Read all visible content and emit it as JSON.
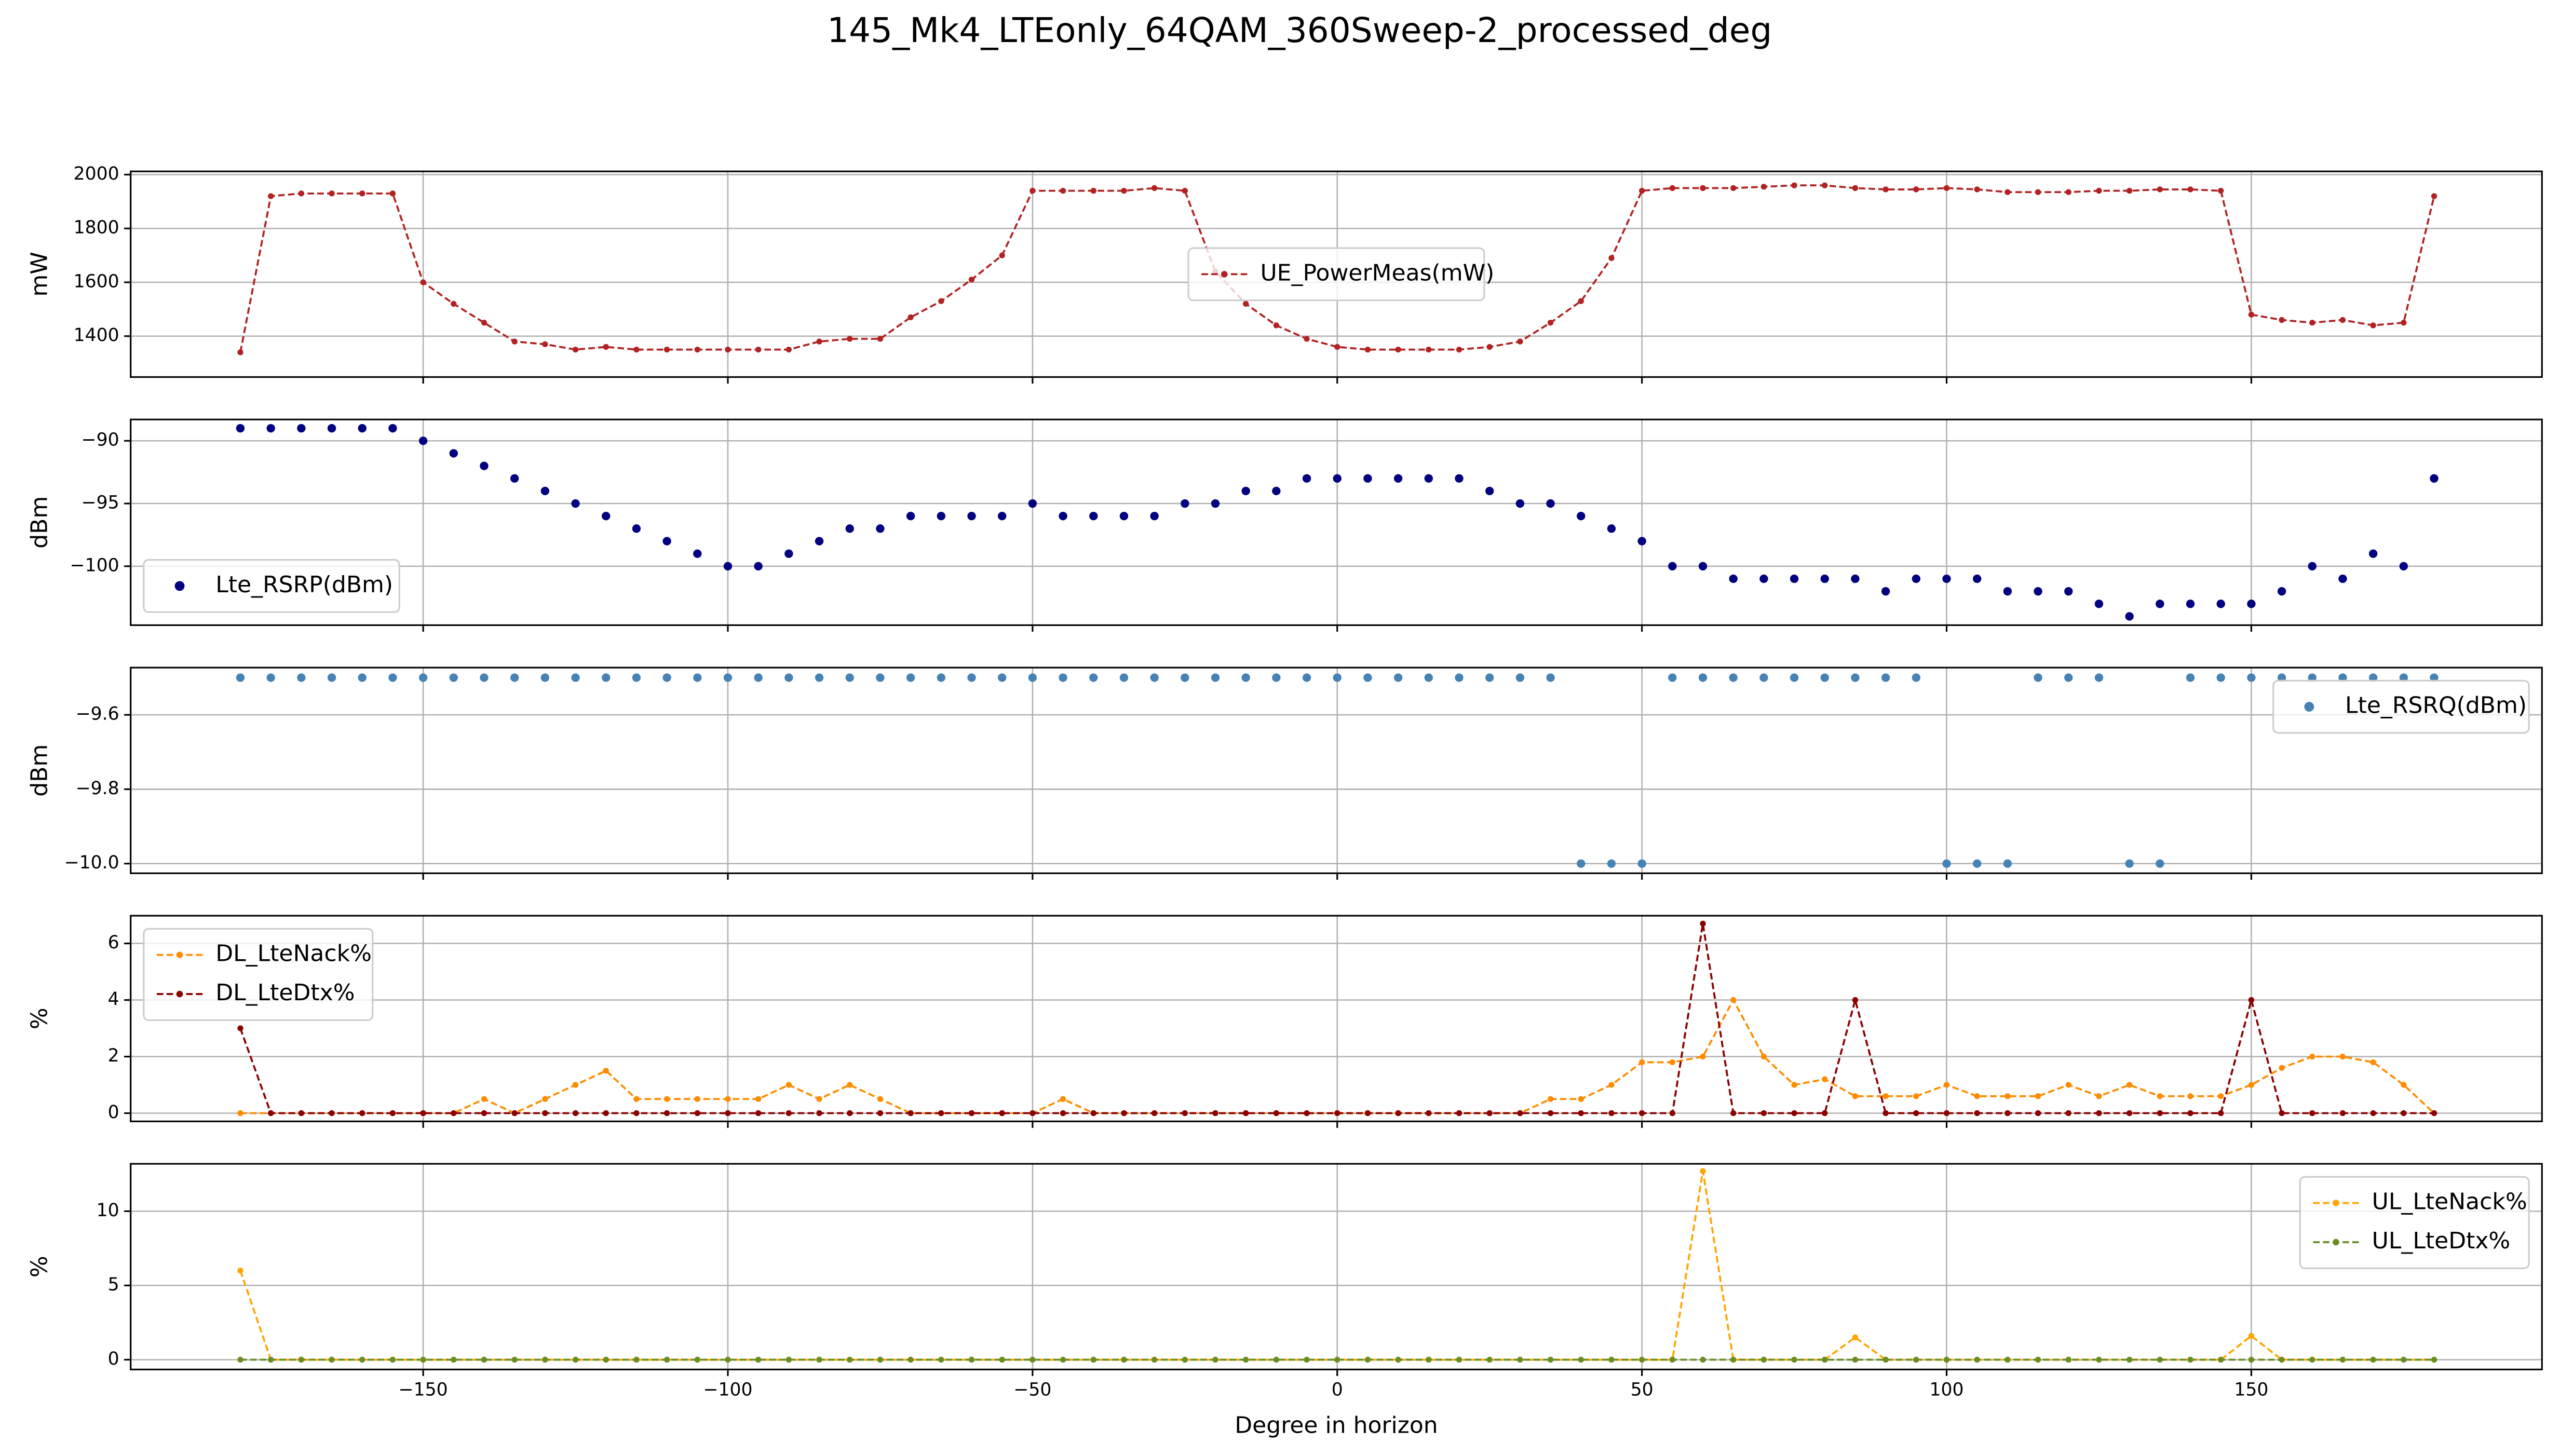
{
  "title": "145_Mk4_LTEonly_64QAM_360Sweep-2_processed_deg",
  "chart_data": [
    {
      "type": "line",
      "ylabel": "mW",
      "legend": "center",
      "grid": true,
      "xlim": [
        -198,
        197.7
      ],
      "xticks": [
        {
          "value": -150,
          "label": "−150"
        },
        {
          "value": -100,
          "label": "−100"
        },
        {
          "value": -50,
          "label": "−50"
        },
        0,
        50,
        100,
        150
      ],
      "ylim": [
        1248,
        2012
      ],
      "yticks": [
        1400,
        1600,
        1800,
        2000
      ],
      "x": [
        -180,
        -175,
        -170,
        -165,
        -160,
        -155,
        -150,
        -145,
        -140,
        -135,
        -130,
        -125,
        -120,
        -115,
        -110,
        -105,
        -100,
        -95,
        -90,
        -85,
        -80,
        -75,
        -70,
        -65,
        -60,
        -55,
        -50,
        -45,
        -40,
        -35,
        -30,
        -25,
        -20,
        -15,
        -10,
        -5,
        0,
        5,
        10,
        15,
        20,
        25,
        30,
        35,
        40,
        45,
        50,
        55,
        60,
        65,
        70,
        75,
        80,
        85,
        90,
        95,
        100,
        105,
        110,
        115,
        120,
        125,
        130,
        135,
        140,
        145,
        150,
        155,
        160,
        165,
        170,
        175,
        180
      ],
      "series": [
        {
          "name": "UE_PowerMeas(mW)",
          "color": "#b22222",
          "values": [
            1340,
            1920,
            1930,
            1930,
            1930,
            1930,
            1600,
            1520,
            1450,
            1380,
            1370,
            1350,
            1360,
            1350,
            1350,
            1350,
            1350,
            1350,
            1350,
            1380,
            1390,
            1390,
            1470,
            1530,
            1610,
            1700,
            1940,
            1940,
            1940,
            1940,
            1950,
            1940,
            1640,
            1520,
            1440,
            1390,
            1360,
            1350,
            1350,
            1350,
            1350,
            1360,
            1380,
            1450,
            1530,
            1690,
            1940,
            1950,
            1950,
            1950,
            1955,
            1960,
            1960,
            1950,
            1945,
            1945,
            1950,
            1945,
            1935,
            1935,
            1935,
            1940,
            1940,
            1945,
            1945,
            1940,
            1480,
            1460,
            1450,
            1460,
            1440,
            1450,
            1920
          ]
        }
      ]
    },
    {
      "type": "scatter",
      "ylabel": "dBm",
      "legend": "lower left",
      "grid": true,
      "xlim": [
        -198,
        197.7
      ],
      "xticks": [
        {
          "value": -150,
          "label": "−150"
        },
        {
          "value": -100,
          "label": "−100"
        },
        {
          "value": -50,
          "label": "−50"
        },
        0,
        50,
        100,
        150
      ],
      "ylim": [
        -104.7,
        -88.3
      ],
      "yticks": [
        {
          "value": -90,
          "label": "−90"
        },
        {
          "value": -95,
          "label": "−95"
        },
        {
          "value": -100,
          "label": "−100"
        }
      ],
      "x": [
        -180,
        -175,
        -170,
        -165,
        -160,
        -155,
        -150,
        -145,
        -140,
        -135,
        -130,
        -125,
        -120,
        -115,
        -110,
        -105,
        -100,
        -95,
        -90,
        -85,
        -80,
        -75,
        -70,
        -65,
        -60,
        -55,
        -50,
        -45,
        -40,
        -35,
        -30,
        -25,
        -20,
        -15,
        -10,
        -5,
        0,
        5,
        10,
        15,
        20,
        25,
        30,
        35,
        40,
        45,
        50,
        55,
        60,
        65,
        70,
        75,
        80,
        85,
        90,
        95,
        100,
        105,
        110,
        115,
        120,
        125,
        130,
        135,
        140,
        145,
        150,
        155,
        160,
        165,
        170,
        175,
        180
      ],
      "series": [
        {
          "name": "Lte_RSRP(dBm)",
          "color": "#000080",
          "values": [
            -89,
            -89,
            -89,
            -89,
            -89,
            -89,
            -90,
            -91,
            -92,
            -93,
            -94,
            -95,
            -96,
            -97,
            -98,
            -99,
            -100,
            -100,
            -99,
            -98,
            -97,
            -97,
            -96,
            -96,
            -96,
            -96,
            -95,
            -96,
            -96,
            -96,
            -96,
            -95,
            -95,
            -94,
            -94,
            -93,
            -93,
            -93,
            -93,
            -93,
            -93,
            -94,
            -95,
            -95,
            -96,
            -97,
            -98,
            -100,
            -100,
            -101,
            -101,
            -101,
            -101,
            -101,
            -102,
            -101,
            -101,
            -101,
            -102,
            -102,
            -102,
            -103,
            -104,
            -103,
            -103,
            -103,
            -103,
            -102,
            -100,
            -101,
            -99,
            -100,
            -93
          ]
        }
      ]
    },
    {
      "type": "scatter",
      "ylabel": "dBm",
      "legend": "upper right",
      "grid": true,
      "xlim": [
        -198,
        197.7
      ],
      "xticks": [
        {
          "value": -150,
          "label": "−150"
        },
        {
          "value": -100,
          "label": "−100"
        },
        {
          "value": -50,
          "label": "−50"
        },
        0,
        50,
        100,
        150
      ],
      "ylim": [
        -10.026,
        -9.473
      ],
      "yticks": [
        {
          "value": -9.6,
          "label": "−9.6"
        },
        {
          "value": -9.8,
          "label": "−9.8"
        },
        {
          "value": -10,
          "label": "−10.0"
        }
      ],
      "x": [
        -180,
        -175,
        -170,
        -165,
        -160,
        -155,
        -150,
        -145,
        -140,
        -135,
        -130,
        -125,
        -120,
        -115,
        -110,
        -105,
        -100,
        -95,
        -90,
        -85,
        -80,
        -75,
        -70,
        -65,
        -60,
        -55,
        -50,
        -45,
        -40,
        -35,
        -30,
        -25,
        -20,
        -15,
        -10,
        -5,
        0,
        5,
        10,
        15,
        20,
        25,
        30,
        35,
        40,
        45,
        50,
        55,
        60,
        65,
        70,
        75,
        80,
        85,
        90,
        95,
        100,
        105,
        110,
        115,
        120,
        125,
        130,
        135,
        140,
        145,
        150,
        155,
        160,
        165,
        170,
        175,
        180
      ],
      "series": [
        {
          "name": "Lte_RSRQ(dBm)",
          "color": "#4682b4",
          "values": [
            -9.5,
            -9.5,
            -9.5,
            -9.5,
            -9.5,
            -9.5,
            -9.5,
            -9.5,
            -9.5,
            -9.5,
            -9.5,
            -9.5,
            -9.5,
            -9.5,
            -9.5,
            -9.5,
            -9.5,
            -9.5,
            -9.5,
            -9.5,
            -9.5,
            -9.5,
            -9.5,
            -9.5,
            -9.5,
            -9.5,
            -9.5,
            -9.5,
            -9.5,
            -9.5,
            -9.5,
            -9.5,
            -9.5,
            -9.5,
            -9.5,
            -9.5,
            -9.5,
            -9.5,
            -9.5,
            -9.5,
            -9.5,
            -9.5,
            -9.5,
            -9.5,
            -10,
            -10,
            -10,
            -9.5,
            -9.5,
            -9.5,
            -9.5,
            -9.5,
            -9.5,
            -9.5,
            -9.5,
            -9.5,
            -10,
            -10,
            -10,
            -9.5,
            -9.5,
            -9.5,
            -10,
            -10,
            -9.5,
            -9.5,
            -9.5,
            -9.5,
            -9.5,
            -9.5,
            -9.5,
            -9.5,
            -9.5
          ]
        }
      ]
    },
    {
      "type": "line",
      "ylabel": "%",
      "legend": "upper left",
      "grid": true,
      "xlim": [
        -198,
        197.7
      ],
      "xticks": [
        {
          "value": -150,
          "label": "−150"
        },
        {
          "value": -100,
          "label": "−100"
        },
        {
          "value": -50,
          "label": "−50"
        },
        0,
        50,
        100,
        150
      ],
      "ylim": [
        -0.29,
        6.98
      ],
      "yticks": [
        0,
        2,
        4,
        6
      ],
      "x": [
        -180,
        -175,
        -170,
        -165,
        -160,
        -155,
        -150,
        -145,
        -140,
        -135,
        -130,
        -125,
        -120,
        -115,
        -110,
        -105,
        -100,
        -95,
        -90,
        -85,
        -80,
        -75,
        -70,
        -65,
        -60,
        -55,
        -50,
        -45,
        -40,
        -35,
        -30,
        -25,
        -20,
        -15,
        -10,
        -5,
        0,
        5,
        10,
        15,
        20,
        25,
        30,
        35,
        40,
        45,
        50,
        55,
        60,
        65,
        70,
        75,
        80,
        85,
        90,
        95,
        100,
        105,
        110,
        115,
        120,
        125,
        130,
        135,
        140,
        145,
        150,
        155,
        160,
        165,
        170,
        175,
        180
      ],
      "series": [
        {
          "name": "DL_LteNack%",
          "color": "#ff8c00",
          "values": [
            0,
            0,
            0,
            0,
            0,
            0,
            0,
            0,
            0.5,
            0,
            0.5,
            1,
            1.5,
            0.5,
            0.5,
            0.5,
            0.5,
            0.5,
            1,
            0.5,
            1,
            0.5,
            0,
            0,
            0,
            0,
            0,
            0.5,
            0,
            0,
            0,
            0,
            0,
            0,
            0,
            0,
            0,
            0,
            0,
            0,
            0,
            0,
            0,
            0.5,
            0.5,
            1,
            1.8,
            1.8,
            2,
            4,
            2,
            1,
            1.2,
            0.6,
            0.6,
            0.6,
            1,
            0.6,
            0.6,
            0.6,
            1,
            0.6,
            1,
            0.6,
            0.6,
            0.6,
            1,
            1.6,
            2,
            2,
            1.8,
            1,
            0
          ]
        },
        {
          "name": "DL_LteDtx%",
          "color": "#8b0000",
          "values": [
            3,
            0,
            0,
            0,
            0,
            0,
            0,
            0,
            0,
            0,
            0,
            0,
            0,
            0,
            0,
            0,
            0,
            0,
            0,
            0,
            0,
            0,
            0,
            0,
            0,
            0,
            0,
            0,
            0,
            0,
            0,
            0,
            0,
            0,
            0,
            0,
            0,
            0,
            0,
            0,
            0,
            0,
            0,
            0,
            0,
            0,
            0,
            0,
            6.7,
            0,
            0,
            0,
            0,
            4,
            0,
            0,
            0,
            0,
            0,
            0,
            0,
            0,
            0,
            0,
            0,
            0,
            4,
            0,
            0,
            0,
            0,
            0,
            0
          ]
        }
      ]
    },
    {
      "type": "line",
      "ylabel": "%",
      "xlabel": "Degree in horizon",
      "legend": "upper right",
      "grid": true,
      "xlim": [
        -198,
        197.7
      ],
      "xticks": [
        {
          "value": -150,
          "label": "−150"
        },
        {
          "value": -100,
          "label": "−100"
        },
        {
          "value": -50,
          "label": "−50"
        },
        0,
        50,
        100,
        150
      ],
      "ylim": [
        -0.66,
        13.19
      ],
      "yticks": [
        0,
        5,
        10
      ],
      "x": [
        -180,
        -175,
        -170,
        -165,
        -160,
        -155,
        -150,
        -145,
        -140,
        -135,
        -130,
        -125,
        -120,
        -115,
        -110,
        -105,
        -100,
        -95,
        -90,
        -85,
        -80,
        -75,
        -70,
        -65,
        -60,
        -55,
        -50,
        -45,
        -40,
        -35,
        -30,
        -25,
        -20,
        -15,
        -10,
        -5,
        0,
        5,
        10,
        15,
        20,
        25,
        30,
        35,
        40,
        45,
        50,
        55,
        60,
        65,
        70,
        75,
        80,
        85,
        90,
        95,
        100,
        105,
        110,
        115,
        120,
        125,
        130,
        135,
        140,
        145,
        150,
        155,
        160,
        165,
        170,
        175,
        180
      ],
      "series": [
        {
          "name": "UL_LteNack%",
          "color": "#ffa500",
          "values": [
            6,
            0,
            0,
            0,
            0,
            0,
            0,
            0,
            0,
            0,
            0,
            0,
            0,
            0,
            0,
            0,
            0,
            0,
            0,
            0,
            0,
            0,
            0,
            0,
            0,
            0,
            0,
            0,
            0,
            0,
            0,
            0,
            0,
            0,
            0,
            0,
            0,
            0,
            0,
            0,
            0,
            0,
            0,
            0,
            0,
            0,
            0,
            0,
            12.7,
            0,
            0,
            0,
            0,
            1.5,
            0,
            0,
            0,
            0,
            0,
            0,
            0,
            0,
            0,
            0,
            0,
            0,
            1.6,
            0,
            0,
            0,
            0,
            0,
            0
          ]
        },
        {
          "name": "UL_LteDtx%",
          "color": "#6b8e23",
          "values": [
            0,
            0,
            0,
            0,
            0,
            0,
            0,
            0,
            0,
            0,
            0,
            0,
            0,
            0,
            0,
            0,
            0,
            0,
            0,
            0,
            0,
            0,
            0,
            0,
            0,
            0,
            0,
            0,
            0,
            0,
            0,
            0,
            0,
            0,
            0,
            0,
            0,
            0,
            0,
            0,
            0,
            0,
            0,
            0,
            0,
            0,
            0,
            0,
            0,
            0,
            0,
            0,
            0,
            0,
            0,
            0,
            0,
            0,
            0,
            0,
            0,
            0,
            0,
            0,
            0,
            0,
            0,
            0,
            0,
            0,
            0,
            0,
            0
          ]
        }
      ]
    }
  ]
}
